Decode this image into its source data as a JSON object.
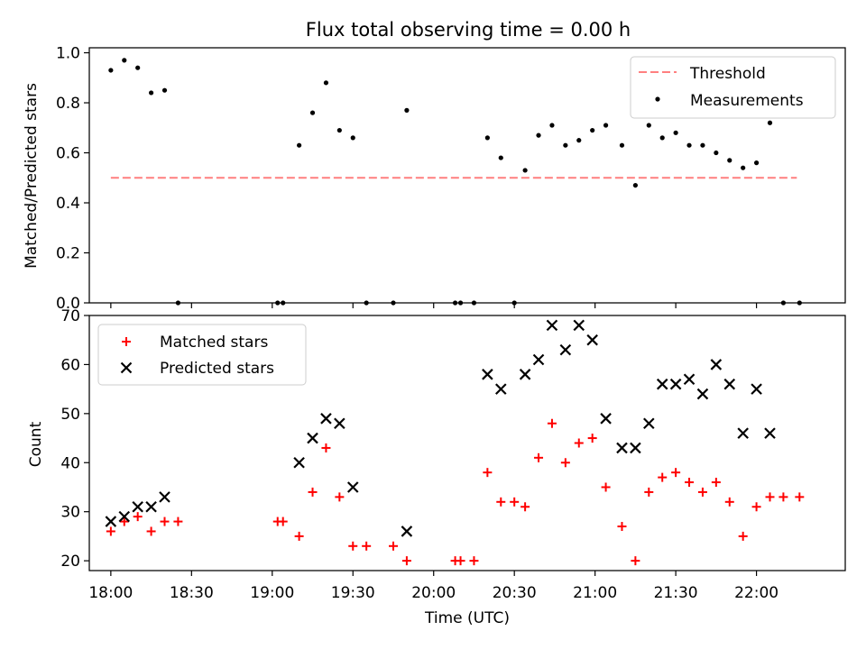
{
  "figure": {
    "title": "Flux total observing time = 0.00 h"
  },
  "chart_data": [
    {
      "type": "scatter",
      "ylabel": "Matched/Predicted stars",
      "xlim": [
        "17:52",
        "22:33"
      ],
      "ylim": [
        0,
        1.02
      ],
      "yticks": [
        "0.0",
        "0.2",
        "0.4",
        "0.6",
        "0.8",
        "1.0"
      ],
      "grid": false,
      "legend": {
        "placement": "upper right",
        "entries": [
          "Threshold",
          "Measurements"
        ]
      },
      "threshold": {
        "name": "Threshold",
        "y": 0.5,
        "x_start": "18:00",
        "x_end": "22:15",
        "color": "#ff7f7f",
        "style": "dashed"
      },
      "series": [
        {
          "name": "Measurements",
          "color": "#000000",
          "points": [
            {
              "x": "18:00",
              "y": 0.93
            },
            {
              "x": "18:05",
              "y": 0.97
            },
            {
              "x": "18:10",
              "y": 0.94
            },
            {
              "x": "18:15",
              "y": 0.84
            },
            {
              "x": "18:20",
              "y": 0.85
            },
            {
              "x": "18:25",
              "y": 0.0
            },
            {
              "x": "19:02",
              "y": 0.0
            },
            {
              "x": "19:04",
              "y": 0.0
            },
            {
              "x": "19:10",
              "y": 0.63
            },
            {
              "x": "19:15",
              "y": 0.76
            },
            {
              "x": "19:20",
              "y": 0.88
            },
            {
              "x": "19:25",
              "y": 0.69
            },
            {
              "x": "19:30",
              "y": 0.66
            },
            {
              "x": "19:35",
              "y": 0.0
            },
            {
              "x": "19:45",
              "y": 0.0
            },
            {
              "x": "19:50",
              "y": 0.77
            },
            {
              "x": "20:08",
              "y": 0.0
            },
            {
              "x": "20:10",
              "y": 0.0
            },
            {
              "x": "20:15",
              "y": 0.0
            },
            {
              "x": "20:20",
              "y": 0.66
            },
            {
              "x": "20:25",
              "y": 0.58
            },
            {
              "x": "20:30",
              "y": 0.0
            },
            {
              "x": "20:34",
              "y": 0.53
            },
            {
              "x": "20:39",
              "y": 0.67
            },
            {
              "x": "20:44",
              "y": 0.71
            },
            {
              "x": "20:49",
              "y": 0.63
            },
            {
              "x": "20:54",
              "y": 0.65
            },
            {
              "x": "20:59",
              "y": 0.69
            },
            {
              "x": "21:04",
              "y": 0.71
            },
            {
              "x": "21:10",
              "y": 0.63
            },
            {
              "x": "21:15",
              "y": 0.47
            },
            {
              "x": "21:20",
              "y": 0.71
            },
            {
              "x": "21:25",
              "y": 0.66
            },
            {
              "x": "21:30",
              "y": 0.68
            },
            {
              "x": "21:35",
              "y": 0.63
            },
            {
              "x": "21:40",
              "y": 0.63
            },
            {
              "x": "21:45",
              "y": 0.6
            },
            {
              "x": "21:50",
              "y": 0.57
            },
            {
              "x": "21:55",
              "y": 0.54
            },
            {
              "x": "22:00",
              "y": 0.56
            },
            {
              "x": "22:05",
              "y": 0.72
            },
            {
              "x": "22:10",
              "y": 0.0
            },
            {
              "x": "22:16",
              "y": 0.0
            }
          ]
        }
      ]
    },
    {
      "type": "scatter",
      "xlabel": "Time (UTC)",
      "ylabel": "Count",
      "xlim": [
        "17:52",
        "22:33"
      ],
      "ylim": [
        18,
        70
      ],
      "xticks": [
        "18:00",
        "18:30",
        "19:00",
        "19:30",
        "20:00",
        "20:30",
        "21:00",
        "21:30",
        "22:00"
      ],
      "yticks": [
        "20",
        "30",
        "40",
        "50",
        "60",
        "70"
      ],
      "grid": false,
      "legend": {
        "placement": "upper left",
        "entries": [
          "Matched stars",
          "Predicted stars"
        ]
      },
      "series": [
        {
          "name": "Matched stars",
          "color": "#ff0000",
          "marker": "plus",
          "points": [
            {
              "x": "18:00",
              "y": 26
            },
            {
              "x": "18:05",
              "y": 28
            },
            {
              "x": "18:10",
              "y": 29
            },
            {
              "x": "18:15",
              "y": 26
            },
            {
              "x": "18:20",
              "y": 28
            },
            {
              "x": "18:25",
              "y": 28
            },
            {
              "x": "19:02",
              "y": 28
            },
            {
              "x": "19:04",
              "y": 28
            },
            {
              "x": "19:10",
              "y": 25
            },
            {
              "x": "19:15",
              "y": 34
            },
            {
              "x": "19:20",
              "y": 43
            },
            {
              "x": "19:25",
              "y": 33
            },
            {
              "x": "19:30",
              "y": 23
            },
            {
              "x": "19:35",
              "y": 23
            },
            {
              "x": "19:45",
              "y": 23
            },
            {
              "x": "19:50",
              "y": 20
            },
            {
              "x": "20:08",
              "y": 20
            },
            {
              "x": "20:10",
              "y": 20
            },
            {
              "x": "20:15",
              "y": 20
            },
            {
              "x": "20:20",
              "y": 38
            },
            {
              "x": "20:25",
              "y": 32
            },
            {
              "x": "20:30",
              "y": 32
            },
            {
              "x": "20:34",
              "y": 31
            },
            {
              "x": "20:39",
              "y": 41
            },
            {
              "x": "20:44",
              "y": 48
            },
            {
              "x": "20:49",
              "y": 40
            },
            {
              "x": "20:54",
              "y": 44
            },
            {
              "x": "20:59",
              "y": 45
            },
            {
              "x": "21:04",
              "y": 35
            },
            {
              "x": "21:10",
              "y": 27
            },
            {
              "x": "21:15",
              "y": 20
            },
            {
              "x": "21:20",
              "y": 34
            },
            {
              "x": "21:25",
              "y": 37
            },
            {
              "x": "21:30",
              "y": 38
            },
            {
              "x": "21:35",
              "y": 36
            },
            {
              "x": "21:40",
              "y": 34
            },
            {
              "x": "21:45",
              "y": 36
            },
            {
              "x": "21:50",
              "y": 32
            },
            {
              "x": "21:55",
              "y": 25
            },
            {
              "x": "22:00",
              "y": 31
            },
            {
              "x": "22:05",
              "y": 33
            },
            {
              "x": "22:10",
              "y": 33
            },
            {
              "x": "22:16",
              "y": 33
            }
          ]
        },
        {
          "name": "Predicted stars",
          "color": "#000000",
          "marker": "x",
          "points": [
            {
              "x": "18:00",
              "y": 28
            },
            {
              "x": "18:05",
              "y": 29
            },
            {
              "x": "18:10",
              "y": 31
            },
            {
              "x": "18:15",
              "y": 31
            },
            {
              "x": "18:20",
              "y": 33
            },
            {
              "x": "19:10",
              "y": 40
            },
            {
              "x": "19:15",
              "y": 45
            },
            {
              "x": "19:20",
              "y": 49
            },
            {
              "x": "19:25",
              "y": 48
            },
            {
              "x": "19:30",
              "y": 35
            },
            {
              "x": "19:50",
              "y": 26
            },
            {
              "x": "20:20",
              "y": 58
            },
            {
              "x": "20:25",
              "y": 55
            },
            {
              "x": "20:34",
              "y": 58
            },
            {
              "x": "20:39",
              "y": 61
            },
            {
              "x": "20:44",
              "y": 68
            },
            {
              "x": "20:49",
              "y": 63
            },
            {
              "x": "20:54",
              "y": 68
            },
            {
              "x": "20:59",
              "y": 65
            },
            {
              "x": "21:04",
              "y": 49
            },
            {
              "x": "21:10",
              "y": 43
            },
            {
              "x": "21:15",
              "y": 43
            },
            {
              "x": "21:20",
              "y": 48
            },
            {
              "x": "21:25",
              "y": 56
            },
            {
              "x": "21:30",
              "y": 56
            },
            {
              "x": "21:35",
              "y": 57
            },
            {
              "x": "21:40",
              "y": 54
            },
            {
              "x": "21:45",
              "y": 60
            },
            {
              "x": "21:50",
              "y": 56
            },
            {
              "x": "21:55",
              "y": 46
            },
            {
              "x": "22:00",
              "y": 55
            },
            {
              "x": "22:05",
              "y": 46
            }
          ]
        }
      ]
    }
  ]
}
